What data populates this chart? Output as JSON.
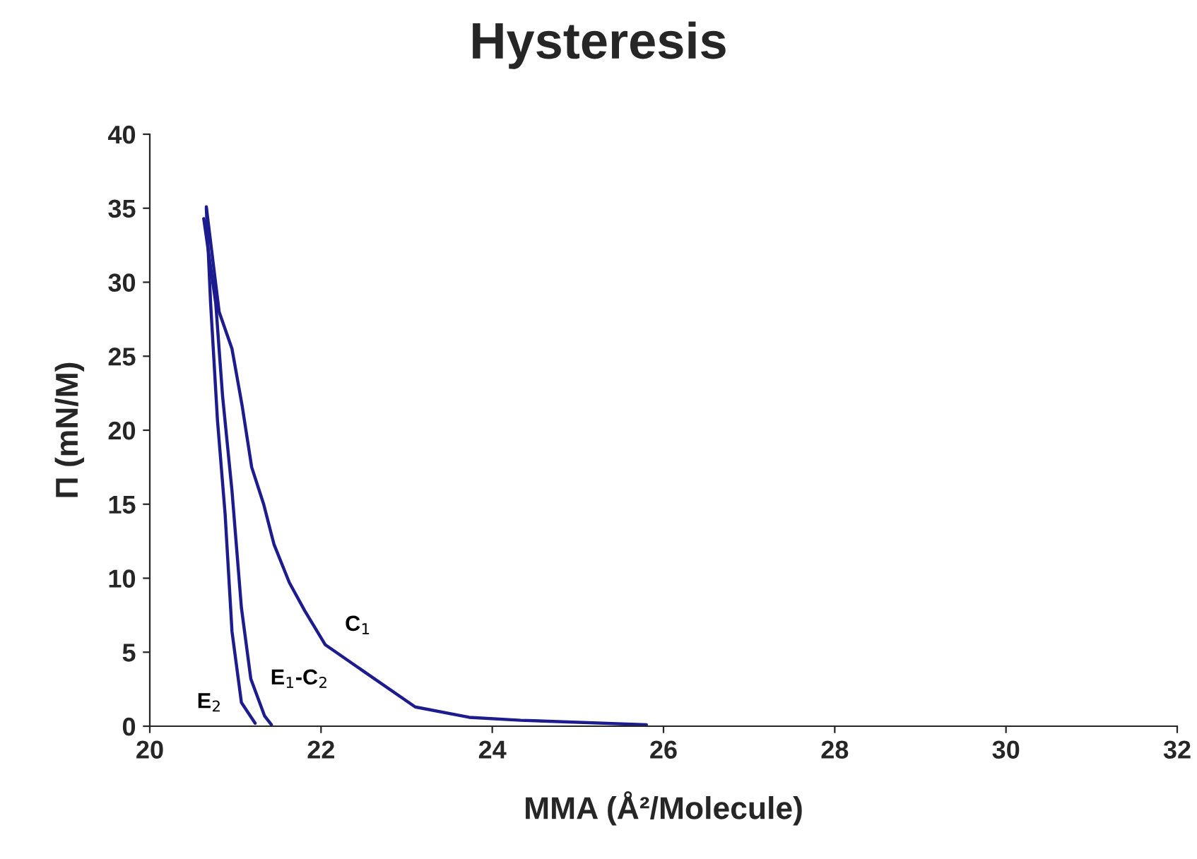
{
  "chart_data": {
    "type": "line",
    "title": "Hysteresis",
    "xlabel": "MMA (Å²/Molecule)",
    "ylabel": "Π (mN/M)",
    "series": [
      {
        "name": "C$_{1}$",
        "color": "#1c1c8e",
        "x": [
          25.8,
          24.33,
          23.73,
          23.1,
          22.05,
          21.81,
          21.63,
          21.45,
          21.33,
          21.19,
          21.08,
          20.96,
          20.81,
          20.66
        ],
        "values": [
          0.1,
          0.4,
          0.6,
          1.3,
          5.5,
          7.8,
          9.7,
          12.3,
          15.0,
          17.5,
          21.6,
          25.5,
          28.0,
          35.1
        ]
      },
      {
        "name": "E$_{1}$-C$_{2}$",
        "color": "#1c1c8e",
        "x": [
          20.63,
          20.77,
          20.85,
          20.96,
          21.07,
          21.18,
          21.34,
          21.42
        ],
        "values": [
          34.3,
          28.6,
          22.3,
          15.9,
          8.0,
          3.2,
          0.7,
          0.1
        ]
      },
      {
        "name": "E$_{2}$",
        "color": "#1c1c8e",
        "x": [
          20.66,
          20.71,
          20.79,
          20.88,
          20.96,
          21.07,
          21.23
        ],
        "values": [
          35.0,
          28.6,
          20.7,
          14.3,
          6.4,
          1.6,
          0.2
        ]
      }
    ],
    "xlim": [
      20,
      32
    ],
    "xticks": [
      20,
      22,
      24,
      26,
      28,
      30,
      32
    ],
    "ylim": [
      0,
      40
    ],
    "yticks": [
      0,
      5,
      10,
      15,
      20,
      25,
      30,
      35,
      40
    ],
    "grid": false,
    "legend": false,
    "marker": "none",
    "line_style": "solid"
  }
}
